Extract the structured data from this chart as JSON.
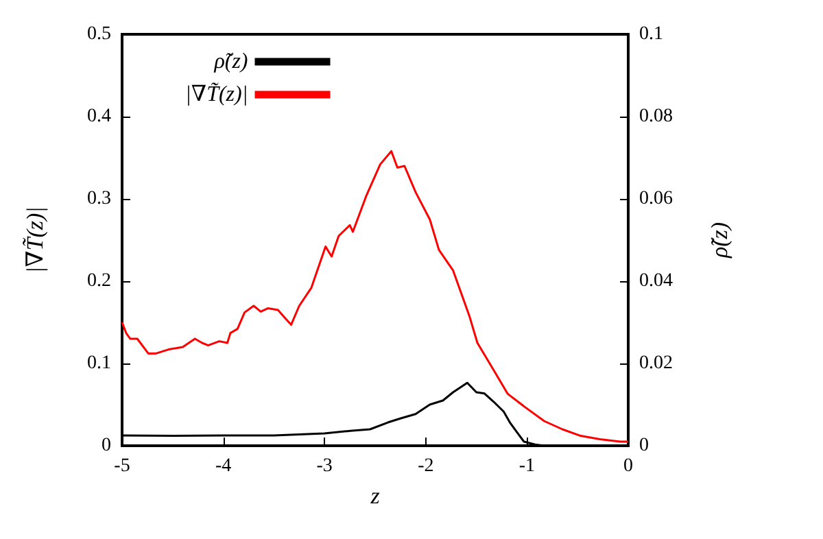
{
  "chart_data": {
    "type": "line",
    "xlabel": "z",
    "ylabel": "|∇T̃(z)|",
    "y2label": "ρ̃(z)",
    "xlim": [
      -5,
      0
    ],
    "xticks": [
      -5,
      -4,
      -3,
      -2,
      -1,
      0
    ],
    "ylim": [
      0,
      0.5
    ],
    "yticks": [
      0,
      0.1,
      0.2,
      0.3,
      0.4,
      0.5
    ],
    "y2lim": [
      0,
      0.1
    ],
    "y2ticks": [
      0,
      0.02,
      0.04,
      0.06,
      0.08,
      0.1
    ],
    "grid": false,
    "legend": "top left",
    "marker": "none",
    "line_style": "solid",
    "series": [
      {
        "name": "ρ̃(z)",
        "color": "#000000",
        "axis": "y2",
        "x": [
          -5,
          -4.5,
          -4,
          -3.5,
          -3,
          -2.8,
          -2.55,
          -2.37,
          -2.24,
          -2.1,
          -1.96,
          -1.83,
          -1.73,
          -1.59,
          -1.5,
          -1.42,
          -1.33,
          -1.23,
          -1.17,
          -1.1,
          -1.03,
          -0.92,
          -0.83,
          0
        ],
        "values": [
          0.0025,
          0.0024,
          0.0025,
          0.0025,
          0.003,
          0.0035,
          0.004,
          0.0057,
          0.0067,
          0.0077,
          0.01,
          0.011,
          0.013,
          0.0153,
          0.013,
          0.0127,
          0.0107,
          0.0083,
          0.0057,
          0.0033,
          0.001,
          0.0003,
          0,
          0
        ]
      },
      {
        "name": "|∇T̃(z)|",
        "color": "#ff0000",
        "x": [
          -5,
          -4.96,
          -4.92,
          -4.85,
          -4.74,
          -4.67,
          -4.54,
          -4.4,
          -4.28,
          -4.21,
          -4.15,
          -4.04,
          -3.96,
          -3.93,
          -3.86,
          -3.79,
          -3.7,
          -3.63,
          -3.56,
          -3.46,
          -3.41,
          -3.33,
          -3.25,
          -3.13,
          -2.99,
          -2.93,
          -2.86,
          -2.75,
          -2.72,
          -2.59,
          -2.45,
          -2.34,
          -2.28,
          -2.21,
          -2.1,
          -1.96,
          -1.87,
          -1.73,
          -1.57,
          -1.49,
          -1.33,
          -1.19,
          -1.02,
          -0.83,
          -0.65,
          -0.47,
          -0.28,
          -0.08,
          0
        ],
        "values": [
          0.15,
          0.137,
          0.13,
          0.13,
          0.112,
          0.112,
          0.117,
          0.12,
          0.13,
          0.125,
          0.122,
          0.127,
          0.125,
          0.137,
          0.142,
          0.162,
          0.17,
          0.163,
          0.167,
          0.165,
          0.158,
          0.147,
          0.17,
          0.192,
          0.242,
          0.23,
          0.255,
          0.268,
          0.26,
          0.303,
          0.342,
          0.358,
          0.338,
          0.34,
          0.308,
          0.275,
          0.238,
          0.213,
          0.158,
          0.125,
          0.092,
          0.063,
          0.047,
          0.03,
          0.02,
          0.012,
          0.008,
          0.005,
          0.005
        ]
      }
    ]
  }
}
